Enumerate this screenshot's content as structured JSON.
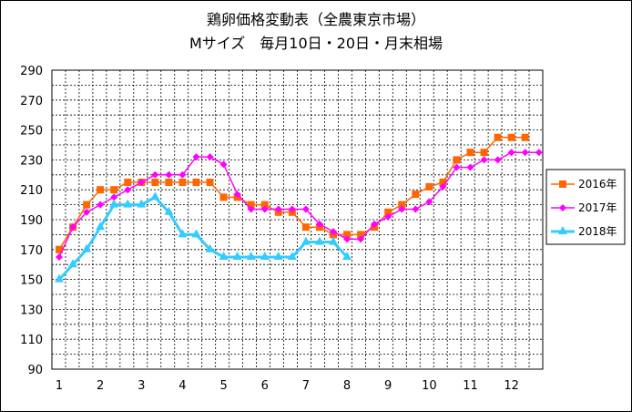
{
  "chart_data": {
    "type": "line",
    "title": "鶏卵価格変動表（全農東京市場）",
    "subtitle": "Mサイズ　毎月10日・20日・月末相場",
    "xlabel": "",
    "ylabel": "",
    "ylim": [
      90,
      290
    ],
    "yticks": [
      "290",
      "270",
      "250",
      "230",
      "210",
      "190",
      "170",
      "150",
      "130",
      "110",
      "90"
    ],
    "xticks": [
      "1",
      "2",
      "3",
      "4",
      "5",
      "6",
      "7",
      "8",
      "9",
      "10",
      "11",
      "12"
    ],
    "grid": "dashed",
    "legend_position": "right",
    "series": [
      {
        "name": "2016年",
        "color": "#ff6600",
        "marker": "square",
        "values": [
          170,
          185,
          200,
          210,
          210,
          215,
          215,
          215,
          215,
          215,
          215,
          215,
          205,
          205,
          200,
          200,
          195,
          195,
          185,
          185,
          180,
          180,
          180,
          185,
          195,
          200,
          207,
          212,
          215,
          230,
          235,
          235,
          245,
          245,
          245
        ]
      },
      {
        "name": "2017年",
        "color": "#ff00ff",
        "marker": "diamond",
        "values": [
          165,
          185,
          195,
          200,
          205,
          210,
          215,
          220,
          220,
          220,
          232,
          232,
          227,
          207,
          197,
          197,
          197,
          197,
          197,
          187,
          182,
          177,
          177,
          187,
          192,
          197,
          197,
          202,
          212,
          225,
          225,
          230,
          230,
          235,
          235,
          235
        ]
      },
      {
        "name": "2018年",
        "color": "#33ccff",
        "marker": "triangle",
        "values": [
          150,
          160,
          170,
          185,
          200,
          200,
          200,
          205,
          195,
          180,
          180,
          170,
          165,
          165,
          165,
          165,
          165,
          165,
          175,
          175,
          175,
          165
        ]
      }
    ]
  }
}
